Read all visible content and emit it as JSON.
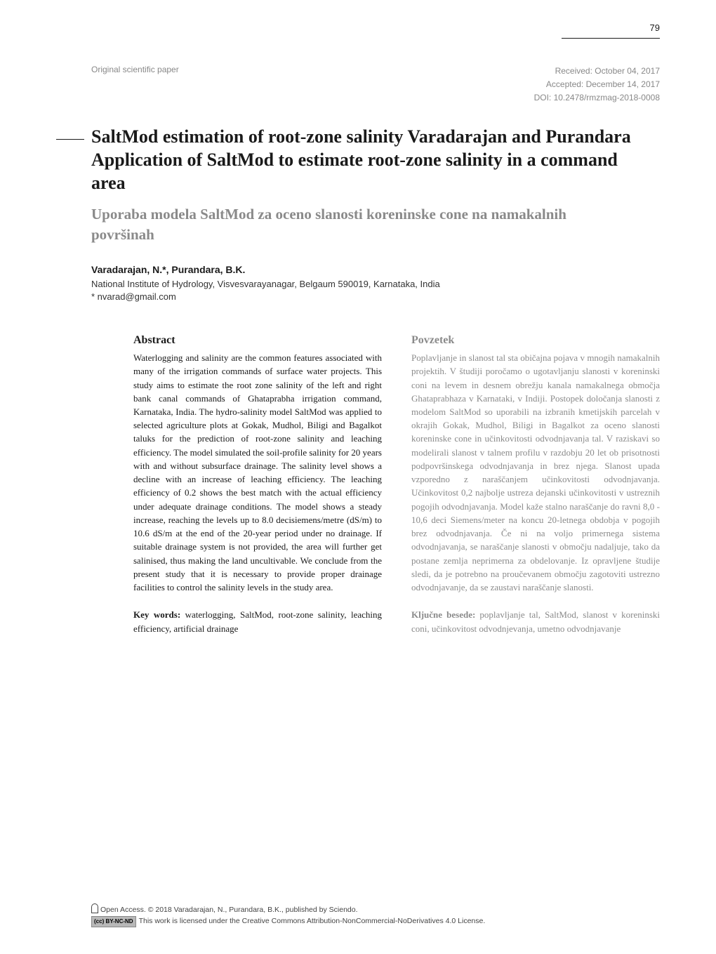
{
  "page_number": "79",
  "meta": {
    "left": "Original scientific paper",
    "received": "Received: October 04, 2017",
    "accepted": "Accepted: December 14, 2017",
    "doi": "DOI: 10.2478/rmzmag-2018-0008"
  },
  "title": "SaltMod estimation of root-zone salinity Varadarajan and Purandara Application of SaltMod to estimate root-zone salinity in a command area",
  "subtitle": "Uporaba modela SaltMod za oceno slanosti koreninske cone na namakalnih površinah",
  "authors": "Varadarajan, N.*, Purandara, B.K.",
  "affiliation": "National Institute of Hydrology, Visvesvarayanagar, Belgaum 590019, Karnataka, India",
  "email": "* nvarad@gmail.com",
  "left_col": {
    "heading": "Abstract",
    "body": "Waterlogging and salinity are the common features associated with many of the irrigation commands of surface water projects. This study aims to estimate the root zone salinity of the left and right bank canal commands of Ghataprabha irrigation command, Karnataka, India. The hydro-salinity model SaltMod was applied to selected agriculture plots at Gokak, Mudhol, Biligi and Bagalkot taluks for the prediction of root-zone salinity and leaching efficiency. The model simulated the soil-profile salinity for 20 years with and without subsurface drainage. The salinity level shows a decline with an increase of leaching efficiency. The leaching efficiency of 0.2 shows the best match with the actual efficiency under adequate drainage conditions. The model shows a steady increase, reaching the levels up to 8.0 decisiemens/metre (dS/m) to 10.6 dS/m at the end of the 20-year period under no drainage. If suitable drainage system is not provided, the area will further get salinised, thus making the land uncultivable. We conclude from the present study that it is necessary to provide proper drainage facilities to control the salinity levels in the study area.",
    "kw_label": "Key words:",
    "kw_body": " waterlogging, SaltMod, root-zone salinity, leaching efficiency, artificial drainage"
  },
  "right_col": {
    "heading": "Povzetek",
    "body": "Poplavljanje in slanost tal sta običajna pojava v mnogih namakalnih projektih. V študiji poročamo o ugotavljanju slanosti v koreninski coni na levem in desnem obrežju kanala namakalnega območja Ghataprabhaza v Karnataki, v Indiji. Postopek določanja slanosti z modelom SaltMod so uporabili na izbranih kmetijskih parcelah v okrajih Gokak, Mudhol, Biligi in Bagalkot za oceno slanosti koreninske cone in učinkovitosti odvodnjavanja tal. V raziskavi so modelirali slanost v talnem profilu v razdobju 20 let ob prisotnosti podpovršinskega odvodnjavanja in brez njega. Slanost upada vzporedno z naraščanjem učinkovitosti odvodnjavanja. Učinkovitost 0,2 najbolje ustreza dejanski učinkovitosti v ustreznih pogojih odvodnjavanja. Model kaže stalno naraščanje do ravni 8,0 - 10,6 deci Siemens/meter na koncu 20-letnega obdobja v pogojih brez odvodnjavanja. Če ni na voljo primernega sistema odvodnjavanja, se naraščanje slanosti v območju nadaljuje, tako da postane zemlja neprimerna za obdelovanje. Iz opravljene študije sledi, da je potrebno na proučevanem območju zagotoviti ustrezno odvodnjavanje, da se zaustavi naraščanje slanosti.",
    "kw_label": "Ključne besede:",
    "kw_body": " poplavljanje tal, SaltMod, slanost v koreninski coni, učinkovitost odvodnjevanja, umetno odvodnjavanje"
  },
  "footer": {
    "line1_prefix": "Open Access. © 2018 Varadarajan, N., Purandara, B.K., published by Sciendo.",
    "cc_badge": "(cc) BY-NC-ND",
    "line2": "This work is licensed under the Creative Commons Attribution-NonCommercial-NoDerivatives 4.0 License."
  },
  "colors": {
    "text": "#1a1a1a",
    "grey_text": "#8a8a8a",
    "meta_grey": "#888888",
    "background": "#ffffff"
  },
  "typography": {
    "title_fontsize": 26,
    "subtitle_fontsize": 21,
    "body_fontsize": 13,
    "meta_fontsize": 12,
    "footer_fontsize": 10.5
  }
}
